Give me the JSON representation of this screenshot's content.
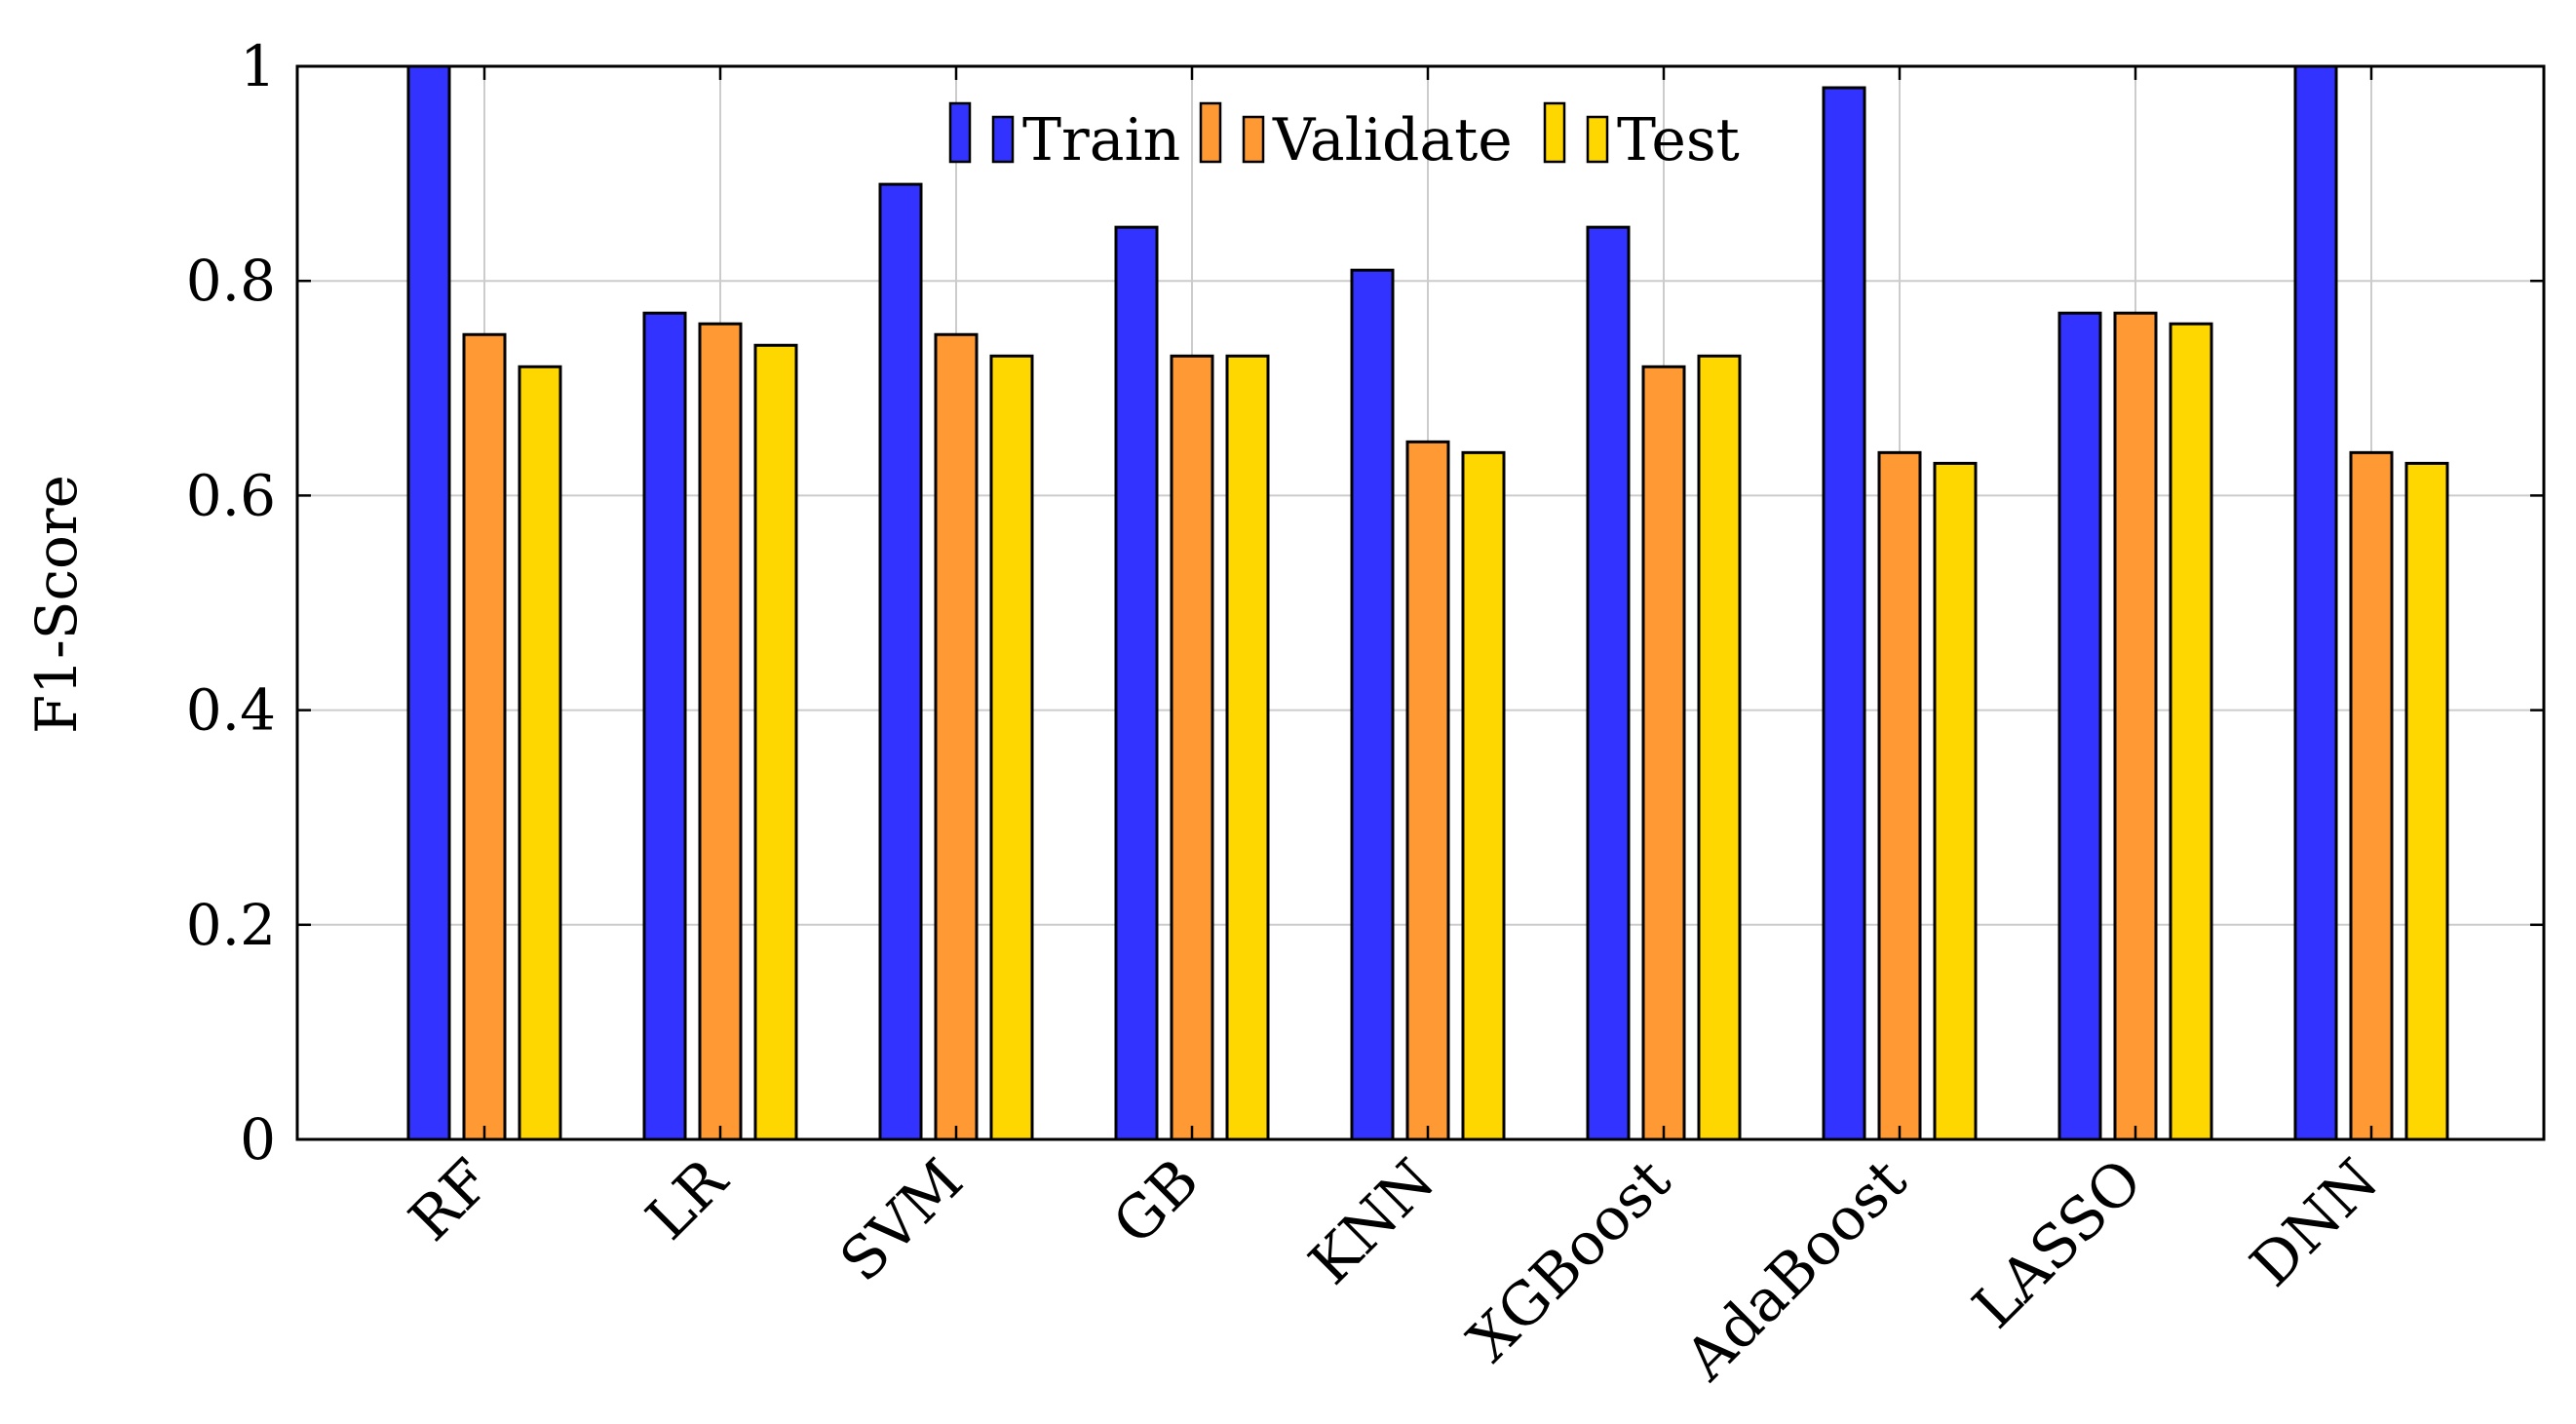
{
  "chart_data": {
    "type": "bar",
    "title": "",
    "xlabel": "",
    "ylabel": "F1-Score",
    "ylim": [
      0,
      1
    ],
    "yticks": [
      0,
      0.2,
      0.4,
      0.6,
      0.8,
      1
    ],
    "ytick_labels": [
      "0",
      "0.2",
      "0.4",
      "0.6",
      "0.8",
      "1"
    ],
    "grid": true,
    "legend_position": "top-center",
    "categories": [
      "RF",
      "LR",
      "SVM",
      "GB",
      "KNN",
      "XGBoost",
      "AdaBoost",
      "LASSO",
      "DNN"
    ],
    "series": [
      {
        "name": "Train",
        "color": "#3333ff",
        "values": [
          1.0,
          0.77,
          0.89,
          0.85,
          0.81,
          0.85,
          0.98,
          0.77,
          1.0
        ]
      },
      {
        "name": "Validate",
        "color": "#ff9933",
        "values": [
          0.75,
          0.76,
          0.75,
          0.73,
          0.65,
          0.72,
          0.64,
          0.77,
          0.64
        ]
      },
      {
        "name": "Test",
        "color": "#ffd700",
        "values": [
          0.72,
          0.74,
          0.73,
          0.73,
          0.64,
          0.73,
          0.63,
          0.76,
          0.63
        ]
      }
    ]
  }
}
